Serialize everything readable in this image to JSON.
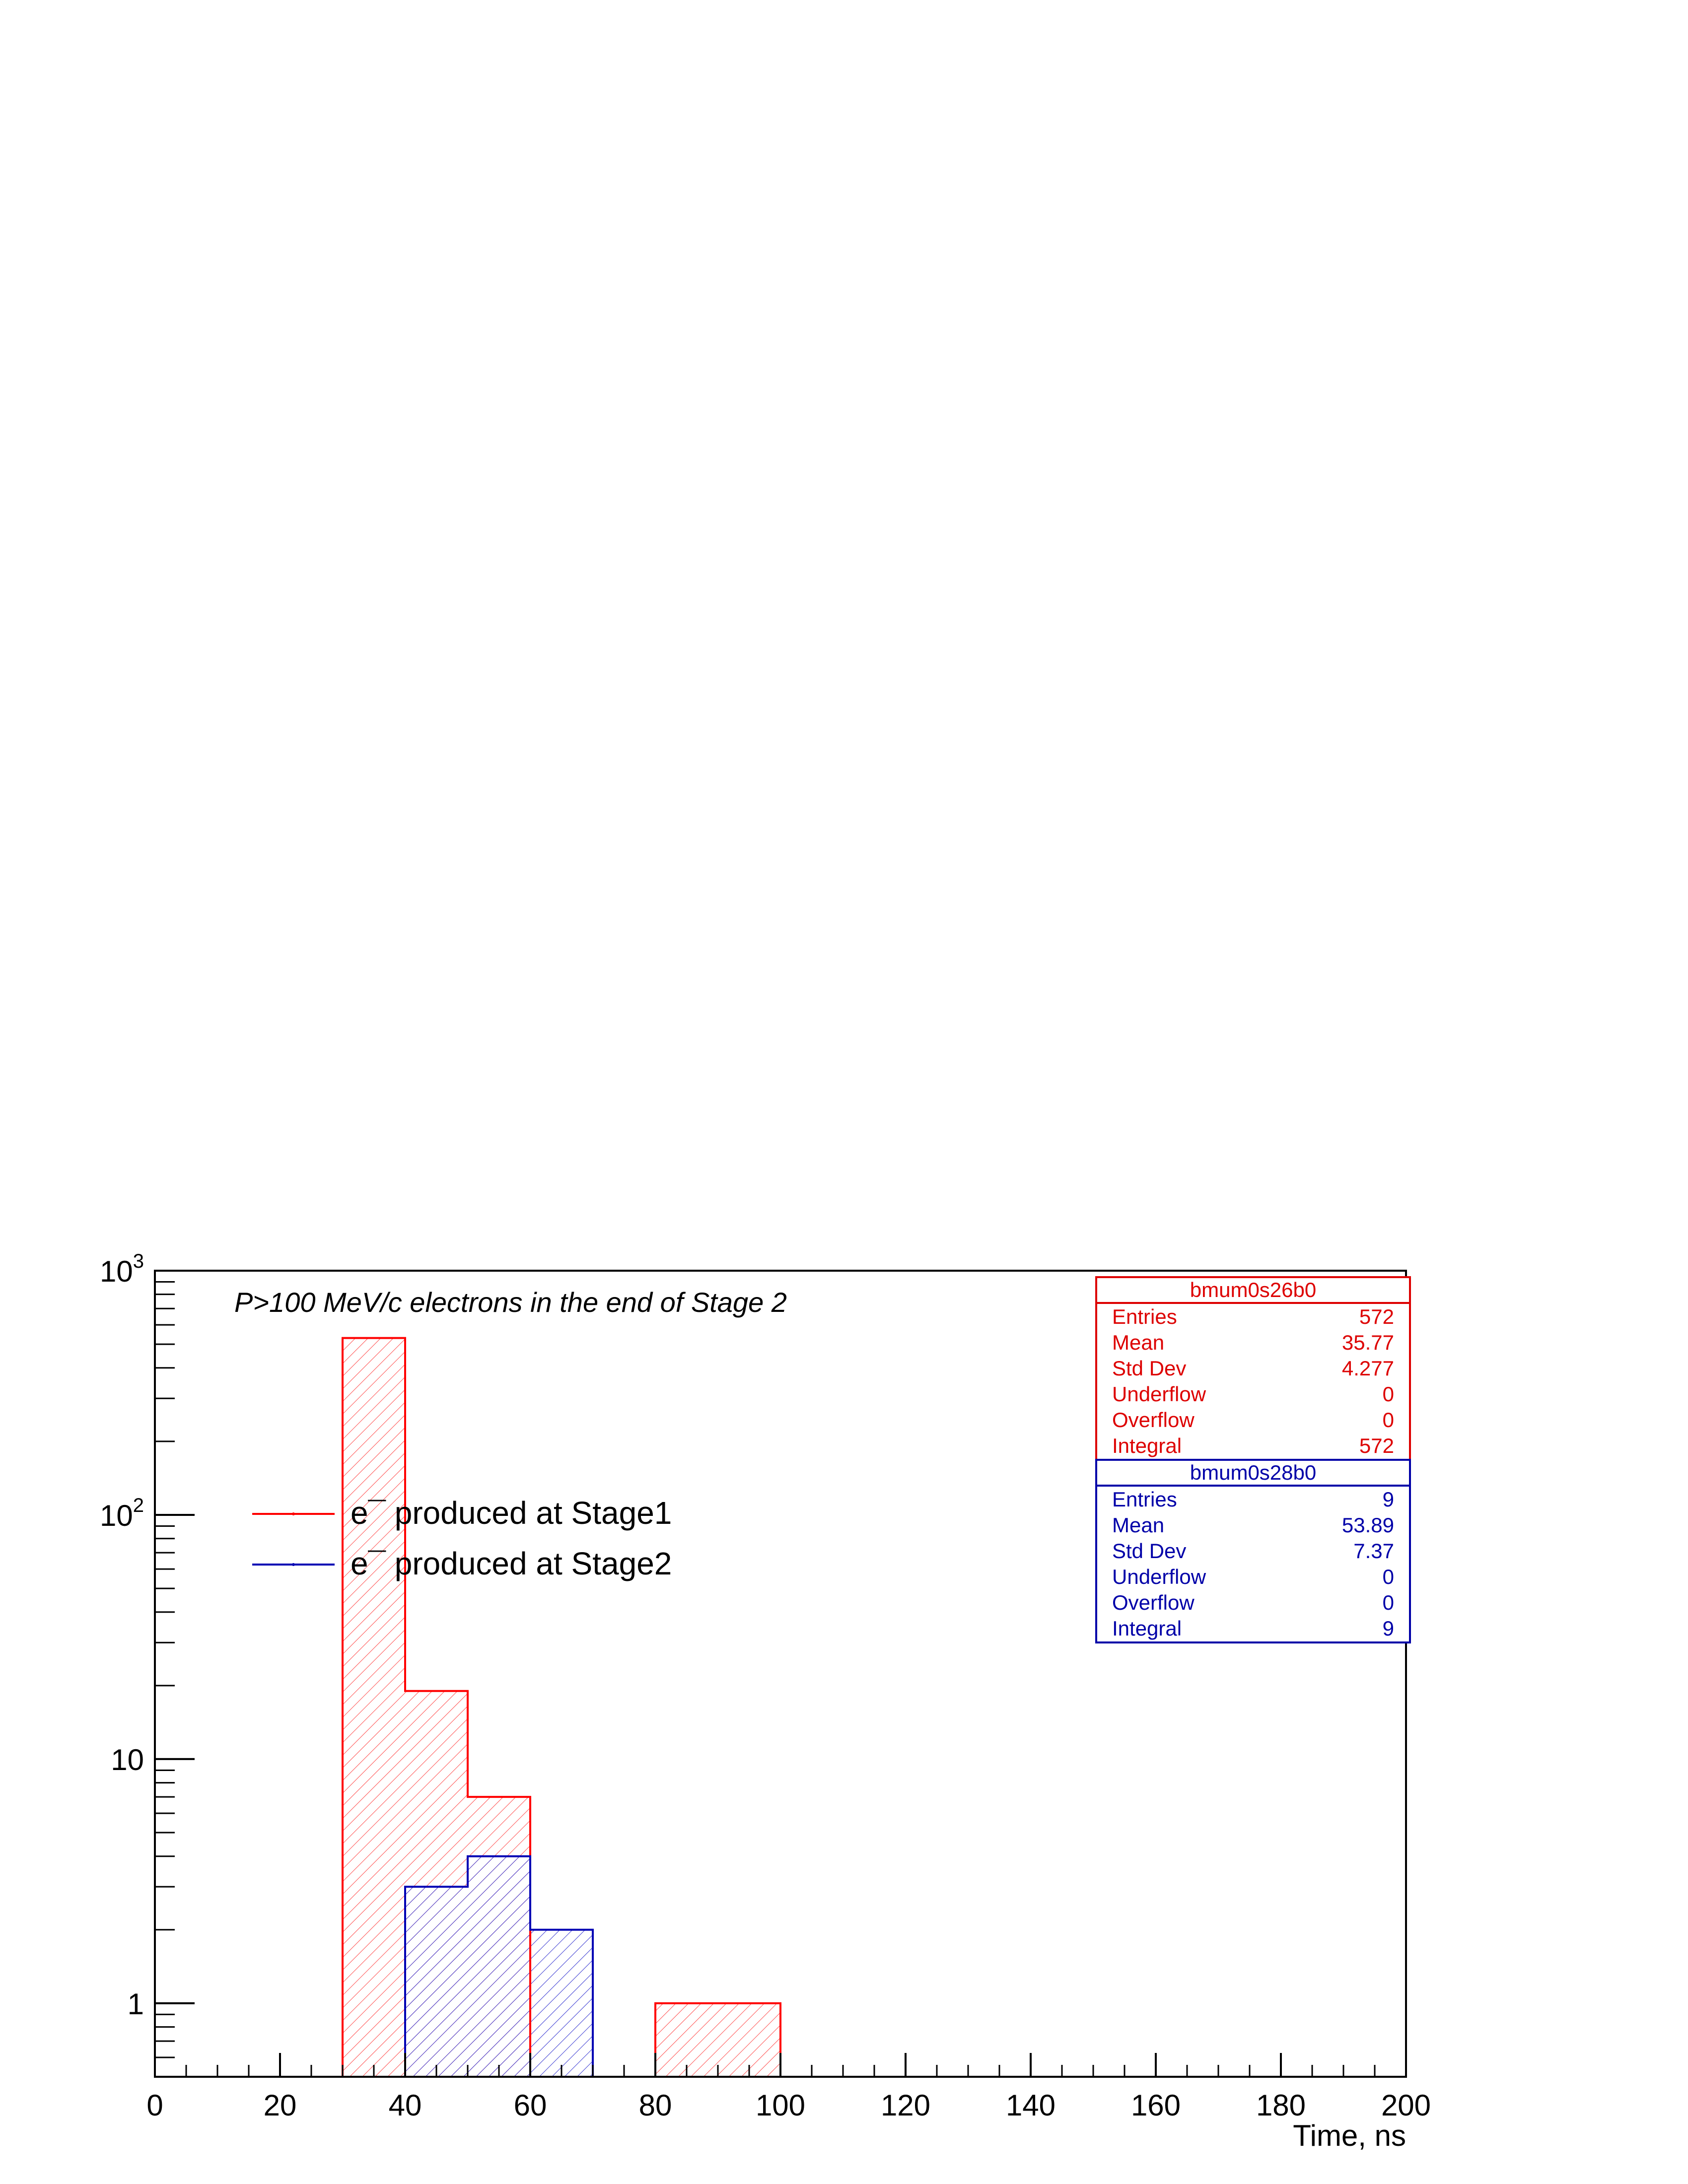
{
  "chart_data": {
    "type": "bar",
    "subtype": "step histogram",
    "title": "P>100 MeV/c electrons in the end of Stage 2",
    "xlabel": "Time, ns",
    "ylabel": "",
    "xlim": [
      0,
      200
    ],
    "ylim": [
      0.5,
      1000
    ],
    "yscale": "log",
    "x_ticks": [
      "0",
      "20",
      "40",
      "60",
      "80",
      "100",
      "120",
      "140",
      "160",
      "180",
      "200"
    ],
    "y_ticks": [
      {
        "value": 1,
        "label": "1"
      },
      {
        "value": 10,
        "label": "10"
      },
      {
        "value": 100,
        "base": "10",
        "exp": "2"
      },
      {
        "value": 1000,
        "base": "10",
        "exp": "3"
      }
    ],
    "bin_width": 10,
    "series": [
      {
        "name": "e¯ produced at Stage1",
        "color": "#ff0000",
        "fill": "hatched",
        "bins": [
          {
            "x": 30,
            "y": 530
          },
          {
            "x": 40,
            "y": 19
          },
          {
            "x": 50,
            "y": 7
          },
          {
            "x": 80,
            "y": 1
          },
          {
            "x": 90,
            "y": 1
          }
        ]
      },
      {
        "name": "e¯ produced at Stage2",
        "color": "#0000b4",
        "fill": "hatched",
        "bins": [
          {
            "x": 40,
            "y": 3
          },
          {
            "x": 50,
            "y": 4
          },
          {
            "x": 60,
            "y": 2
          }
        ]
      }
    ],
    "legend": {
      "position": "upper-left",
      "entries": [
        "e¯ produced at Stage1",
        "e¯ produced at Stage2"
      ]
    },
    "stats_boxes": [
      {
        "name": "bmum0s26b0",
        "color": "#dd0000",
        "rows": [
          {
            "label": "Entries",
            "value": "572"
          },
          {
            "label": "Mean",
            "value": "35.77"
          },
          {
            "label": "Std Dev",
            "value": "4.277"
          },
          {
            "label": "Underflow",
            "value": "0"
          },
          {
            "label": "Overflow",
            "value": "0"
          },
          {
            "label": "Integral",
            "value": "572"
          }
        ]
      },
      {
        "name": "bmum0s28b0",
        "color": "#0000a8",
        "rows": [
          {
            "label": "Entries",
            "value": "9"
          },
          {
            "label": "Mean",
            "value": "53.89"
          },
          {
            "label": "Std Dev",
            "value": "7.37"
          },
          {
            "label": "Underflow",
            "value": "0"
          },
          {
            "label": "Overflow",
            "value": "0"
          },
          {
            "label": "Integral",
            "value": "9"
          }
        ]
      }
    ]
  }
}
